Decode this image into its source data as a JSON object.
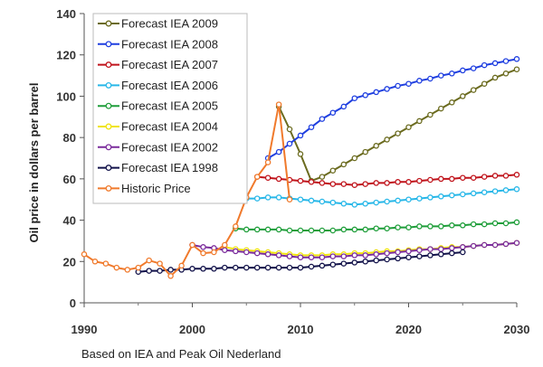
{
  "chart_data": {
    "type": "line",
    "title": "",
    "xlabel": "",
    "ylabel": "Oil price in dollars per barrel",
    "xlim": [
      1990,
      2030
    ],
    "ylim": [
      0,
      140
    ],
    "xticks": [
      1990,
      2000,
      2010,
      2020,
      2030
    ],
    "yticks": [
      0,
      20,
      40,
      60,
      80,
      100,
      120,
      140
    ],
    "grid": false,
    "legend": "top-left",
    "series": [
      {
        "name": "Forecast IEA 2009",
        "color": "#6b6b1f",
        "x": [
          2008,
          2009,
          2010,
          2011,
          2012,
          2013,
          2014,
          2015,
          2016,
          2017,
          2018,
          2019,
          2020,
          2021,
          2022,
          2023,
          2024,
          2025,
          2026,
          2027,
          2028,
          2029,
          2030
        ],
        "y": [
          95,
          84,
          72,
          59,
          61,
          64,
          67,
          70,
          73,
          76,
          79,
          82,
          85,
          88,
          91,
          94,
          97,
          100,
          103,
          106,
          109,
          111,
          113
        ]
      },
      {
        "name": "Forecast IEA 2008",
        "color": "#1f3fe0",
        "x": [
          2007,
          2008,
          2009,
          2010,
          2011,
          2012,
          2013,
          2014,
          2015,
          2016,
          2017,
          2018,
          2019,
          2020,
          2021,
          2022,
          2023,
          2024,
          2025,
          2026,
          2027,
          2028,
          2029,
          2030
        ],
        "y": [
          70,
          73,
          77,
          81,
          85,
          89,
          92,
          95,
          99,
          100.5,
          102,
          103.5,
          105,
          106,
          107.5,
          108.5,
          110,
          111,
          112.5,
          113.5,
          115,
          116,
          117,
          118
        ]
      },
      {
        "name": "Forecast IEA 2007",
        "color": "#c0141c",
        "x": [
          2006,
          2007,
          2008,
          2009,
          2010,
          2011,
          2012,
          2013,
          2014,
          2015,
          2016,
          2017,
          2018,
          2019,
          2020,
          2021,
          2022,
          2023,
          2024,
          2025,
          2026,
          2027,
          2028,
          2029,
          2030
        ],
        "y": [
          61,
          60.5,
          60,
          59.5,
          59,
          58.5,
          58,
          57.5,
          57.5,
          57,
          57.5,
          58,
          58,
          58.5,
          58.5,
          59,
          59.5,
          60,
          60,
          60.5,
          60.5,
          61,
          61.5,
          61.5,
          62
        ]
      },
      {
        "name": "Forecast IEA 2006",
        "color": "#27b7e8",
        "x": [
          2005,
          2006,
          2007,
          2008,
          2009,
          2010,
          2011,
          2012,
          2013,
          2014,
          2015,
          2016,
          2017,
          2018,
          2019,
          2020,
          2021,
          2022,
          2023,
          2024,
          2025,
          2026,
          2027,
          2028,
          2029,
          2030
        ],
        "y": [
          50.5,
          50.5,
          51,
          51,
          50.5,
          50,
          49.5,
          49,
          48.5,
          48,
          47.5,
          48,
          48.5,
          49,
          49.5,
          50,
          50.5,
          51,
          51.5,
          52,
          52.5,
          53,
          53.5,
          54,
          54.5,
          55
        ]
      },
      {
        "name": "Forecast IEA 2005",
        "color": "#1f9e3a",
        "x": [
          2004,
          2005,
          2006,
          2007,
          2008,
          2009,
          2010,
          2011,
          2012,
          2013,
          2014,
          2015,
          2016,
          2017,
          2018,
          2019,
          2020,
          2021,
          2022,
          2023,
          2024,
          2025,
          2026,
          2027,
          2028,
          2029,
          2030
        ],
        "y": [
          36,
          35.5,
          35.5,
          35.5,
          35.5,
          35,
          35,
          35,
          35,
          35,
          35.5,
          35.5,
          35.5,
          36,
          36,
          36.5,
          36.5,
          37,
          37,
          37,
          37.5,
          37.5,
          38,
          38,
          38.5,
          38.5,
          39
        ]
      },
      {
        "name": "Forecast IEA 2004",
        "color": "#f0e40e",
        "x": [
          2003,
          2004,
          2005,
          2006,
          2007,
          2008,
          2009,
          2010,
          2011,
          2012,
          2013,
          2014,
          2015,
          2016,
          2017,
          2018,
          2019,
          2020,
          2021,
          2022,
          2023,
          2024,
          2025,
          2026,
          2027,
          2028,
          2029,
          2030
        ],
        "y": [
          27,
          26,
          25.5,
          25,
          24.5,
          24,
          23.5,
          23,
          23,
          23,
          23.5,
          23.5,
          24,
          24,
          24.5,
          25,
          25,
          25.5,
          26,
          26,
          26.5,
          27,
          27,
          27.5,
          28,
          28,
          28.5,
          29
        ]
      },
      {
        "name": "Forecast IEA 2002",
        "color": "#7b2c9c",
        "x": [
          2000,
          2001,
          2002,
          2003,
          2004,
          2005,
          2006,
          2007,
          2008,
          2009,
          2010,
          2011,
          2012,
          2013,
          2014,
          2015,
          2016,
          2017,
          2018,
          2019,
          2020,
          2021,
          2022,
          2023,
          2024,
          2025,
          2026,
          2027,
          2028,
          2029,
          2030
        ],
        "y": [
          28,
          27,
          26.5,
          25.5,
          25,
          24.5,
          24,
          23.5,
          23,
          22.5,
          22,
          22,
          22,
          22.5,
          22.5,
          23,
          23,
          23.5,
          24,
          24.5,
          25,
          25.5,
          26,
          26,
          26.5,
          27,
          27.5,
          28,
          28,
          28.5,
          29
        ]
      },
      {
        "name": "Forecast IEA 1998",
        "color": "#12124a",
        "x": [
          1995,
          1996,
          1997,
          1998,
          1999,
          2000,
          2001,
          2002,
          2003,
          2004,
          2005,
          2006,
          2007,
          2008,
          2009,
          2010,
          2011,
          2012,
          2013,
          2014,
          2015,
          2016,
          2017,
          2018,
          2019,
          2020,
          2021,
          2022,
          2023,
          2024,
          2025
        ],
        "y": [
          15,
          15.5,
          15.5,
          16,
          16,
          16.5,
          16.5,
          16.5,
          17,
          17,
          17,
          17,
          17,
          17,
          17,
          17,
          17.5,
          18,
          18.5,
          19,
          19.5,
          20,
          20.5,
          21,
          21.5,
          22,
          22.5,
          23,
          23.5,
          24,
          24.5
        ]
      },
      {
        "name": "Historic Price",
        "color": "#f07a2c",
        "x": [
          1990,
          1991,
          1992,
          1993,
          1994,
          1995,
          1996,
          1997,
          1998,
          1999,
          2000,
          2001,
          2002,
          2003,
          2004,
          2005,
          2006,
          2007,
          2008,
          2009
        ],
        "y": [
          23.5,
          20,
          19,
          17,
          16,
          17,
          20.5,
          19,
          13,
          18,
          28,
          24,
          24.5,
          28,
          37,
          51,
          61,
          68,
          96,
          50
        ]
      }
    ]
  },
  "caption": "Based on IEA and Peak Oil Nederland"
}
